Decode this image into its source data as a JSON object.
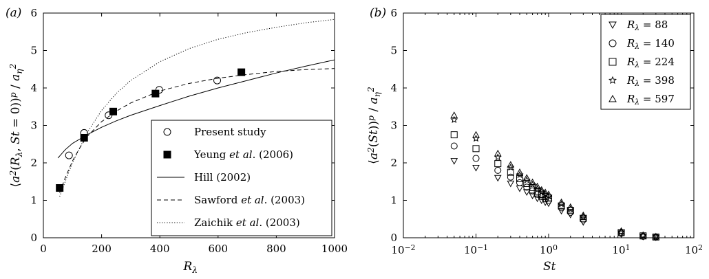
{
  "chart_data": [
    {
      "panel_label": "(a)",
      "type": "scatter",
      "xlabel": "R_λ",
      "ylabel": "⟨a²(R_λ, St = 0)⟩^p / a_η²",
      "xlim": [
        0,
        1000
      ],
      "ylim": [
        0,
        6
      ],
      "xticks": [
        0,
        200,
        400,
        600,
        800,
        1000
      ],
      "yticks": [
        0,
        1,
        2,
        3,
        4,
        5,
        6
      ],
      "legend_position": "bottom-right",
      "series": [
        {
          "name": "Present study",
          "kind": "points",
          "marker": "circle-open",
          "points": [
            [
              88,
              2.2
            ],
            [
              140,
              2.8
            ],
            [
              224,
              3.27
            ],
            [
              398,
              3.95
            ],
            [
              597,
              4.2
            ]
          ]
        },
        {
          "name": "Yeung et al. (2006)",
          "kind": "points",
          "marker": "square-filled",
          "points": [
            [
              56,
              1.33
            ],
            [
              140,
              2.67
            ],
            [
              240,
              3.37
            ],
            [
              385,
              3.85
            ],
            [
              680,
              4.42
            ]
          ]
        },
        {
          "name": "Hill (2002)",
          "kind": "line",
          "style": "solid",
          "points": [
            [
              50,
              2.13
            ],
            [
              75,
              2.35
            ],
            [
              100,
              2.52
            ],
            [
              150,
              2.75
            ],
            [
              200,
              2.95
            ],
            [
              250,
              3.12
            ],
            [
              300,
              3.27
            ],
            [
              400,
              3.53
            ],
            [
              500,
              3.78
            ],
            [
              600,
              4.0
            ],
            [
              700,
              4.2
            ],
            [
              800,
              4.4
            ],
            [
              900,
              4.58
            ],
            [
              1000,
              4.75
            ]
          ]
        },
        {
          "name": "Sawford et al. (2003)",
          "kind": "line",
          "style": "dashed",
          "points": [
            [
              56,
              1.2
            ],
            [
              75,
              1.6
            ],
            [
              100,
              2.05
            ],
            [
              125,
              2.4
            ],
            [
              150,
              2.7
            ],
            [
              200,
              3.1
            ],
            [
              250,
              3.38
            ],
            [
              300,
              3.6
            ],
            [
              400,
              3.92
            ],
            [
              500,
              4.12
            ],
            [
              600,
              4.26
            ],
            [
              700,
              4.36
            ],
            [
              800,
              4.44
            ],
            [
              900,
              4.49
            ],
            [
              1000,
              4.52
            ]
          ]
        },
        {
          "name": "Zaichik et al. (2003)",
          "kind": "line",
          "style": "dotted",
          "points": [
            [
              56,
              1.1
            ],
            [
              75,
              1.5
            ],
            [
              100,
              2.0
            ],
            [
              150,
              2.8
            ],
            [
              200,
              3.4
            ],
            [
              250,
              3.85
            ],
            [
              300,
              4.2
            ],
            [
              400,
              4.7
            ],
            [
              500,
              5.05
            ],
            [
              600,
              5.3
            ],
            [
              700,
              5.48
            ],
            [
              800,
              5.62
            ],
            [
              900,
              5.74
            ],
            [
              1000,
              5.83
            ]
          ]
        }
      ]
    },
    {
      "panel_label": "(b)",
      "type": "scatter",
      "xlabel": "St",
      "ylabel": "⟨a²(St)⟩^p / a_η²",
      "xscale": "log",
      "xlim": [
        0.01,
        100
      ],
      "ylim": [
        0,
        6
      ],
      "xticks": [
        0.01,
        0.1,
        1,
        10,
        100
      ],
      "xtick_labels": [
        [
          "10",
          "−2"
        ],
        [
          "10",
          "−1"
        ],
        [
          "10",
          "0"
        ],
        [
          "10",
          "1"
        ],
        [
          "10",
          "2"
        ]
      ],
      "yticks": [
        0,
        1,
        2,
        3,
        4,
        5,
        6
      ],
      "legend_position": "top-right",
      "x": [
        0.05,
        0.1,
        0.2,
        0.3,
        0.4,
        0.5,
        0.6,
        0.7,
        0.8,
        0.9,
        1.0,
        1.5,
        2.0,
        3.0,
        10,
        20,
        30
      ],
      "series": [
        {
          "name": "R_λ = 88",
          "legend_label": "R_λ = 88",
          "marker": "triangle-down",
          "values": [
            2.05,
            1.87,
            1.6,
            1.45,
            1.32,
            1.22,
            1.13,
            1.05,
            1.0,
            0.95,
            0.92,
            0.72,
            0.62,
            0.42,
            0.1,
            0.03,
            0.01
          ]
        },
        {
          "name": "R_λ = 140",
          "legend_label": "R_λ = 140",
          "marker": "circle",
          "values": [
            2.45,
            2.12,
            1.8,
            1.62,
            1.47,
            1.35,
            1.25,
            1.16,
            1.1,
            1.04,
            1.0,
            0.8,
            0.68,
            0.48,
            0.12,
            0.04,
            0.02
          ]
        },
        {
          "name": "R_λ = 224",
          "legend_label": "R_λ = 224",
          "marker": "square",
          "values": [
            2.75,
            2.38,
            1.98,
            1.75,
            1.58,
            1.45,
            1.34,
            1.24,
            1.16,
            1.1,
            1.06,
            0.85,
            0.73,
            0.52,
            0.14,
            0.05,
            0.02
          ]
        },
        {
          "name": "R_λ = 398",
          "legend_label": "R_λ = 398",
          "marker": "star",
          "values": [
            3.15,
            2.65,
            2.15,
            1.88,
            1.68,
            1.54,
            1.42,
            1.31,
            1.23,
            1.16,
            1.11,
            0.9,
            0.77,
            0.56,
            0.16,
            0.06,
            0.03
          ]
        },
        {
          "name": "R_λ = 597",
          "legend_label": "R_λ = 597",
          "marker": "triangle-up",
          "values": [
            3.27,
            2.75,
            2.25,
            1.95,
            1.75,
            1.6,
            1.48,
            1.37,
            1.28,
            1.21,
            1.16,
            0.95,
            0.82,
            0.6,
            0.18,
            0.07,
            0.03
          ]
        }
      ]
    }
  ]
}
